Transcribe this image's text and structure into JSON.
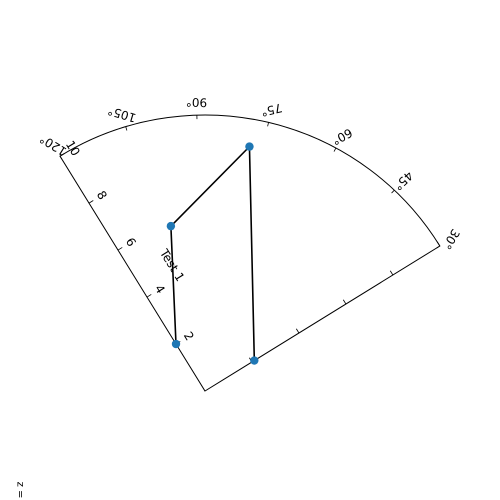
{
  "chart_data": {
    "type": "scatter",
    "projection": "polar",
    "theta_range_deg": [
      30,
      120
    ],
    "r_range": [
      0,
      10
    ],
    "theta_ticks": [
      "30°",
      "45°",
      "60°",
      "75°",
      "90°",
      "105°",
      "120°"
    ],
    "r_ticks": [
      "2",
      "4",
      "6",
      "8",
      "10"
    ],
    "r_axis_label": "Test 1",
    "corner_label": "z =",
    "grid": false,
    "series": [
      {
        "points": [
          {
            "theta": 30,
            "r": 2.1
          },
          {
            "theta": 78,
            "r": 9.0
          },
          {
            "theta": 100,
            "r": 6.1
          },
          {
            "theta": 120,
            "r": 2.0
          }
        ],
        "line_color": "#000000",
        "marker_color": "#1f77b4"
      }
    ]
  }
}
